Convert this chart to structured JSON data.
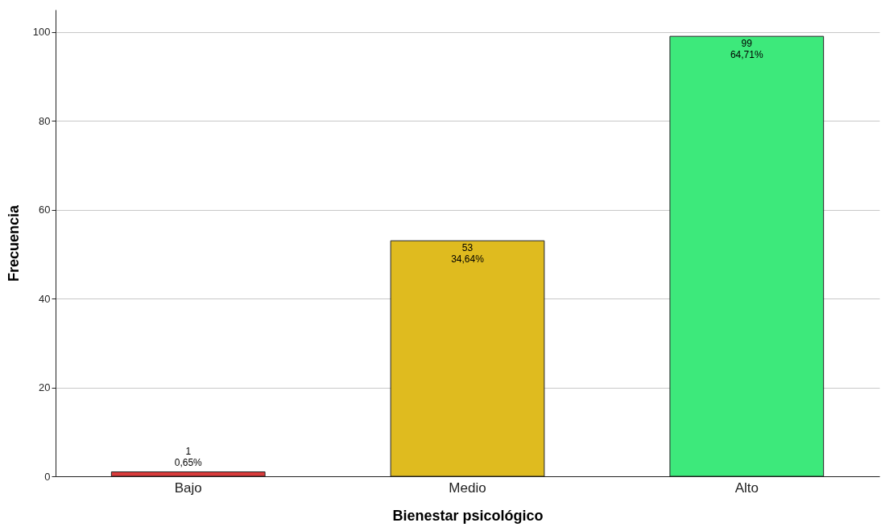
{
  "chart_data": {
    "type": "bar",
    "xlabel": "Bienestar psicológico",
    "ylabel": "Frecuencia",
    "categories": [
      "Bajo",
      "Medio",
      "Alto"
    ],
    "values": [
      1,
      53,
      99
    ],
    "colors": [
      "#d93b3b",
      "#dfbb1f",
      "#3de97b"
    ],
    "value_labels": [
      "1\n0,65%",
      "53\n34,64%",
      "99\n64,71%"
    ],
    "ylim": [
      0,
      105
    ],
    "yticks": [
      0,
      20,
      40,
      60,
      80,
      100
    ],
    "grid": "y"
  }
}
